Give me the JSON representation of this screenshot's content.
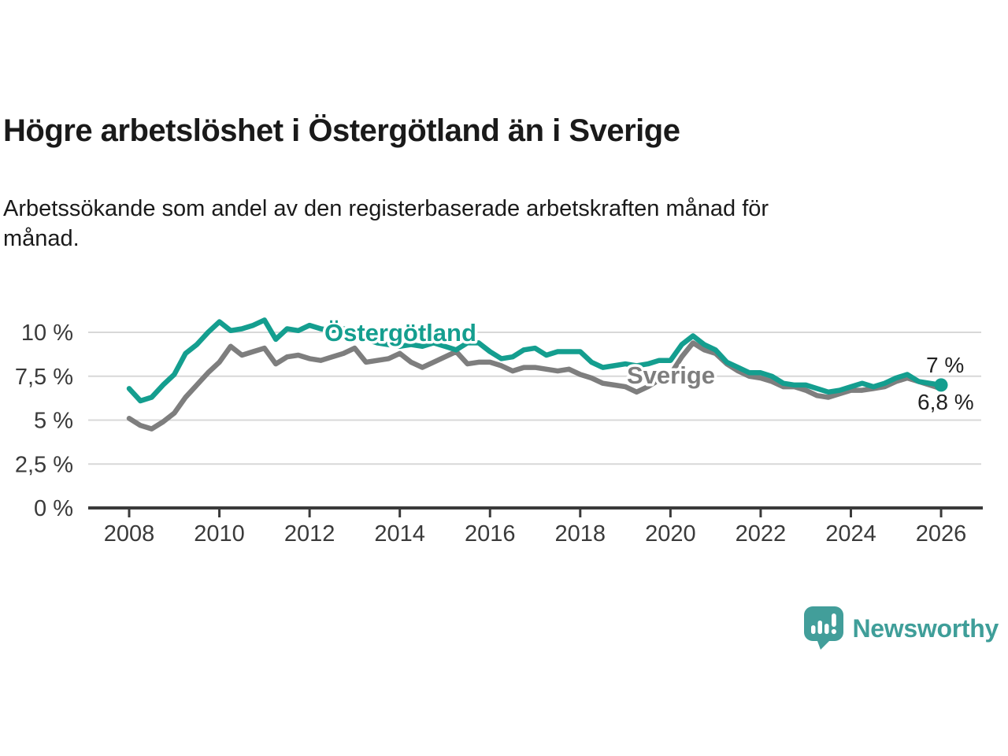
{
  "header": {
    "title": "Högre arbetslöshet i Östergötland än i Sverige",
    "subtitle_lines": [
      "Arbetssökande som andel av den registerbaserade arbetskraften månad för",
      "månad."
    ]
  },
  "chart_data": {
    "type": "line",
    "title": "Högre arbetslöshet i Östergötland än i Sverige",
    "subtitle": "Arbetssökande som andel av den registerbaserade arbetskraften månad för månad.",
    "x_unit": "year",
    "x_start": 2008,
    "x_step": 0.25,
    "x_end": 2026,
    "x_ticks": [
      2008,
      2010,
      2012,
      2014,
      2016,
      2018,
      2020,
      2022,
      2024,
      2026
    ],
    "y_ticks": [
      {
        "value": 0,
        "label": "0 %"
      },
      {
        "value": 2.5,
        "label": "2,5 %"
      },
      {
        "value": 5,
        "label": "5 %"
      },
      {
        "value": 7.5,
        "label": "7,5 %"
      },
      {
        "value": 10,
        "label": "10 %"
      }
    ],
    "ylim": [
      0,
      11.9
    ],
    "grid": "horizontal",
    "legend_position": "inline",
    "series": [
      {
        "name": "Östergötland",
        "color": "#149e8f",
        "end_label": "7 %",
        "end_marker": true,
        "values": [
          6.8,
          6.1,
          6.3,
          7.0,
          7.6,
          8.8,
          9.3,
          10.0,
          10.6,
          10.1,
          10.2,
          10.4,
          10.7,
          9.6,
          10.2,
          10.1,
          10.4,
          10.2,
          10.1,
          10.2,
          10.0,
          9.6,
          9.4,
          9.3,
          9.2,
          9.3,
          9.2,
          9.4,
          9.2,
          9.0,
          9.4,
          9.4,
          8.9,
          8.5,
          8.6,
          9.0,
          9.1,
          8.7,
          8.9,
          8.9,
          8.9,
          8.3,
          8.0,
          8.1,
          8.2,
          8.1,
          8.2,
          8.4,
          8.4,
          9.3,
          9.8,
          9.3,
          9.0,
          8.3,
          8.0,
          7.7,
          7.7,
          7.5,
          7.1,
          7.0,
          7.0,
          6.8,
          6.6,
          6.7,
          6.9,
          7.1,
          6.9,
          7.1,
          7.4,
          7.6,
          7.2,
          7.1,
          7.0
        ]
      },
      {
        "name": "Sverige",
        "color": "#7e7e7e",
        "end_label": "6,8 %",
        "end_marker": false,
        "values": [
          5.1,
          4.7,
          4.5,
          4.9,
          5.4,
          6.3,
          7.0,
          7.7,
          8.3,
          9.2,
          8.7,
          8.9,
          9.1,
          8.2,
          8.6,
          8.7,
          8.5,
          8.4,
          8.6,
          8.8,
          9.1,
          8.3,
          8.4,
          8.5,
          8.8,
          8.3,
          8.0,
          8.3,
          8.6,
          8.9,
          8.2,
          8.3,
          8.3,
          8.1,
          7.8,
          8.0,
          8.0,
          7.9,
          7.8,
          7.9,
          7.6,
          7.4,
          7.1,
          7.0,
          6.9,
          6.6,
          6.9,
          7.3,
          7.6,
          8.6,
          9.4,
          9.0,
          8.8,
          8.2,
          7.8,
          7.5,
          7.4,
          7.2,
          6.9,
          6.9,
          6.7,
          6.4,
          6.3,
          6.5,
          6.7,
          6.7,
          6.8,
          6.9,
          7.2,
          7.4,
          7.2,
          7.0,
          6.8
        ]
      }
    ]
  },
  "colors": {
    "accent_teal": "#149e8f",
    "series_gray": "#7e7e7e",
    "grid": "#d8d8d8",
    "axis": "#3a3a3a",
    "tick_text": "#3a3a3a",
    "title_text": "#1a1a1a",
    "brand_teal": "#3f9e99"
  },
  "footer": {
    "brand": "Newsworthy",
    "logo_icon": "speech-bubble-bar-chart-exclamation"
  }
}
